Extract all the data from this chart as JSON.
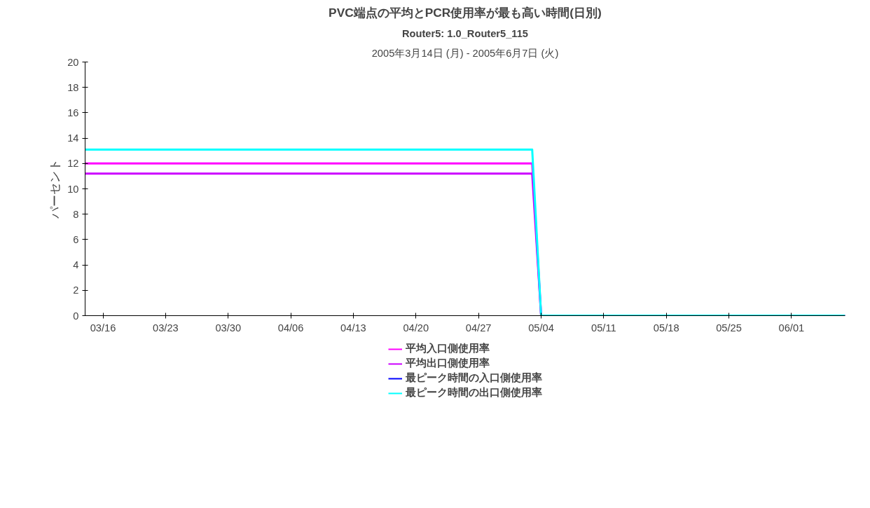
{
  "chart_data": {
    "type": "line",
    "title": "PVC端点の平均とPCR使用率が最も高い時間(日別)",
    "subtitle": "Router5: 1.0_Router5_115",
    "annotations": [
      "2005年3月14日 (月) - 2005年6月7日 (火)"
    ],
    "ylabel": "パーセント",
    "x": [
      "2005-03-14",
      "2005-05-03",
      "2005-05-04",
      "2005-06-07"
    ],
    "series": [
      {
        "name": "平均入口側使用率",
        "color": "#ff00ff",
        "values": [
          12.0,
          12.0,
          0,
          0
        ]
      },
      {
        "name": "平均出口側使用率",
        "color": "#cc00ff",
        "values": [
          11.2,
          11.2,
          0,
          0
        ]
      },
      {
        "name": "最ピーク時間の入口側使用率",
        "color": "#0000ff",
        "values": [
          null,
          null,
          null,
          null
        ]
      },
      {
        "name": "最ピーク時間の出口側使用率",
        "color": "#00ffff",
        "values": [
          13.1,
          13.1,
          0,
          0
        ]
      }
    ],
    "xlim": [
      "2005-03-14",
      "2005-06-07"
    ],
    "xticks": [
      {
        "value": "2005-03-16",
        "label": "03/16"
      },
      {
        "value": "2005-03-23",
        "label": "03/23"
      },
      {
        "value": "2005-03-30",
        "label": "03/30"
      },
      {
        "value": "2005-04-06",
        "label": "04/06"
      },
      {
        "value": "2005-04-13",
        "label": "04/13"
      },
      {
        "value": "2005-04-20",
        "label": "04/20"
      },
      {
        "value": "2005-04-27",
        "label": "04/27"
      },
      {
        "value": "2005-05-04",
        "label": "05/04"
      },
      {
        "value": "2005-05-11",
        "label": "05/11"
      },
      {
        "value": "2005-05-18",
        "label": "05/18"
      },
      {
        "value": "2005-05-25",
        "label": "05/25"
      },
      {
        "value": "2005-06-01",
        "label": "06/01"
      }
    ],
    "ylim": [
      0,
      20
    ],
    "yticks": [
      0,
      2,
      4,
      6,
      8,
      10,
      12,
      14,
      16,
      18,
      20
    ],
    "grid": false,
    "legend": "bottom",
    "marker": "none",
    "line_style": "solid"
  }
}
